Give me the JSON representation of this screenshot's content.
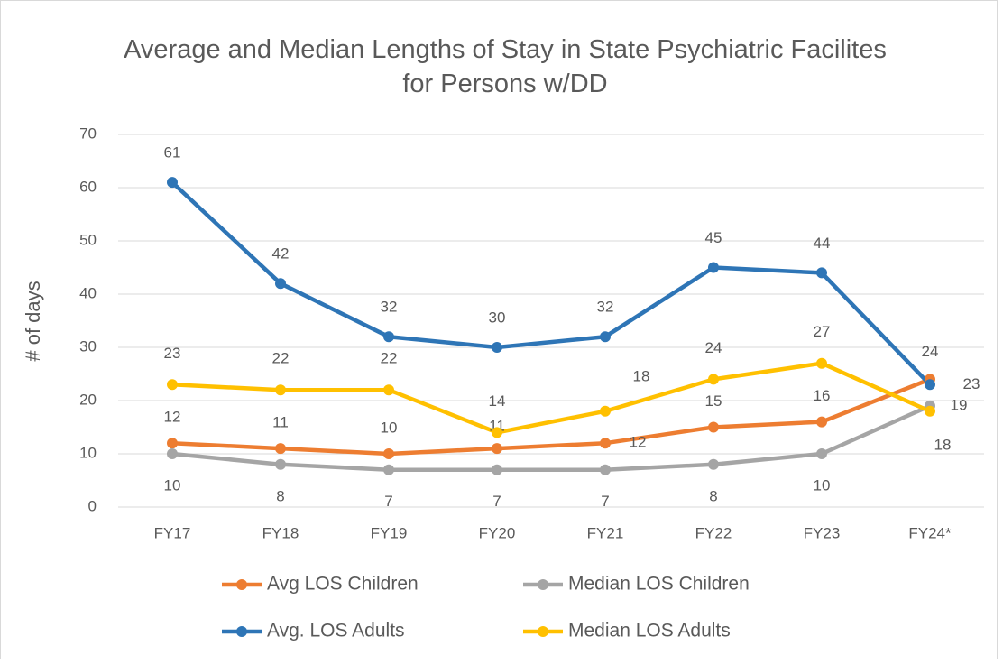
{
  "chart_data": {
    "type": "line",
    "title": "Average and Median Lengths of Stay in State Psychiatric Facilites for Persons w/DD",
    "y_label": "# of days",
    "categories": [
      "FY17",
      "FY18",
      "FY19",
      "FY20",
      "FY21",
      "FY22",
      "FY23",
      "FY24*"
    ],
    "series": [
      {
        "name": "Avg LOS Children",
        "color": "#ed7d31",
        "values": [
          12,
          11,
          10,
          11,
          12,
          15,
          16,
          24
        ]
      },
      {
        "name": "Median LOS Children",
        "color": "#a5a5a5",
        "values": [
          10,
          8,
          7,
          7,
          7,
          8,
          10,
          19
        ]
      },
      {
        "name": "Avg. LOS Adults",
        "color": "#2e75b6",
        "values": [
          61,
          42,
          32,
          30,
          32,
          45,
          44,
          23
        ]
      },
      {
        "name": "Median LOS Adults",
        "color": "#ffc000",
        "values": [
          23,
          22,
          22,
          14,
          18,
          24,
          27,
          18
        ]
      }
    ],
    "ylim": [
      0,
      70
    ],
    "yticks": [
      0,
      10,
      20,
      30,
      40,
      50,
      60,
      70
    ],
    "grid": true,
    "legend": "bottom",
    "data_labels": true
  }
}
